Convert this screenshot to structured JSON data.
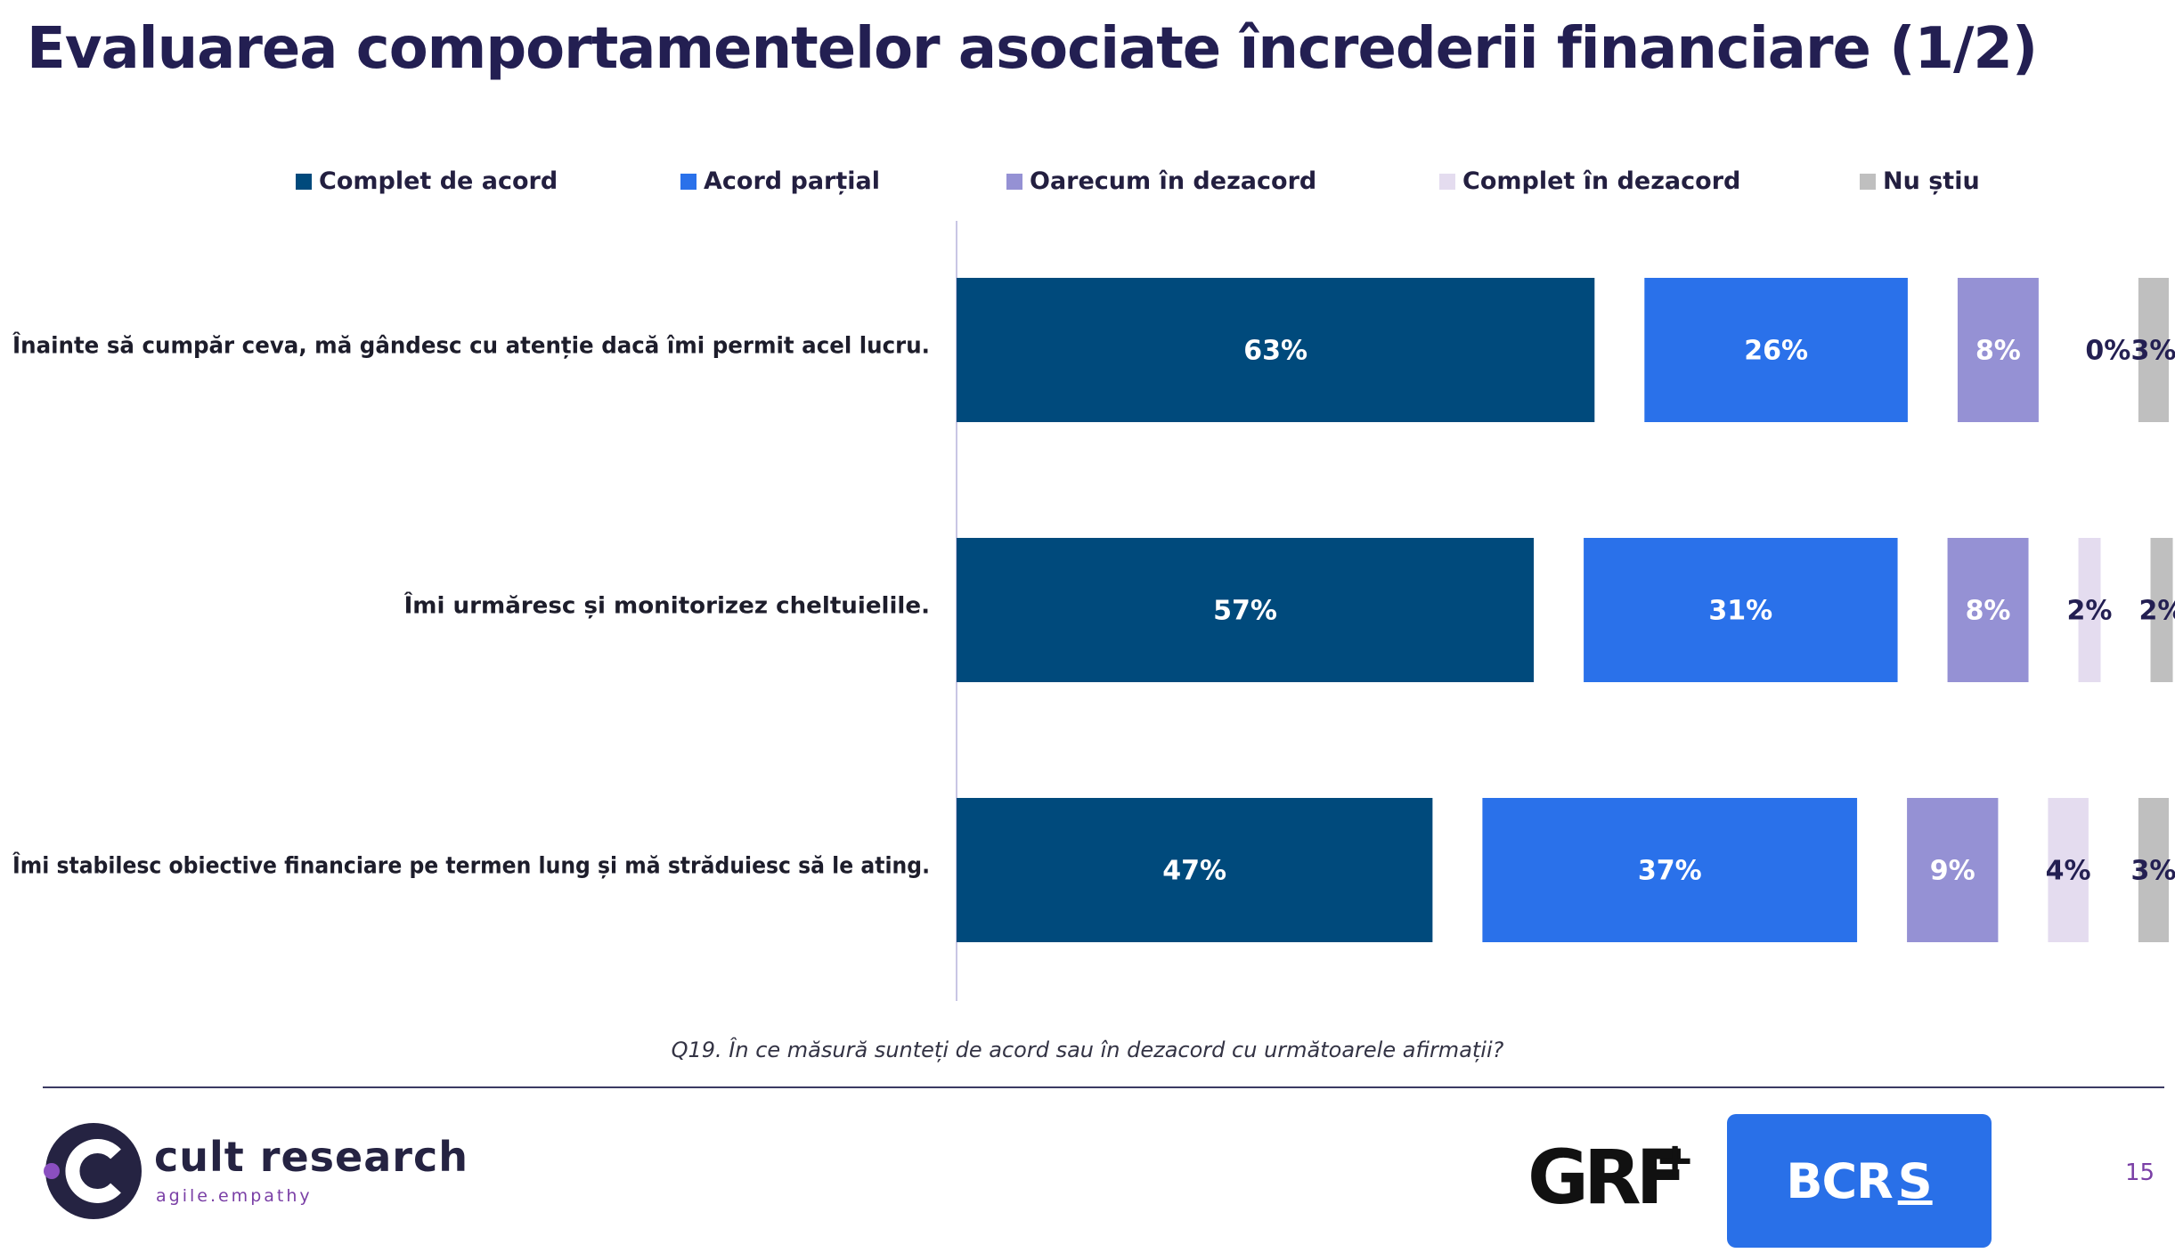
{
  "title": "Evaluarea comportamentelor asociate încrederii financiare (1/2)",
  "question": "Q19. În ce măsură sunteți de acord sau în dezacord cu următoarele afirmații?",
  "logos": {
    "cult_name": "cult research",
    "cult_tagline": "agile.empathy",
    "grf": "GRF",
    "grf_plus": "+",
    "bcr": "BCR",
    "bcr_sign": "S"
  },
  "page_number": "15",
  "chart_data": {
    "type": "bar",
    "orientation": "horizontal",
    "layout": "grouped-segments",
    "legend_position": "top",
    "grid": false,
    "categories": [
      "Înainte să cumpăr ceva, mă gândesc cu atenție dacă îmi permit acel lucru.",
      "Îmi urmăresc și monitorizez cheltuielile.",
      "Îmi stabilesc obiective financiare pe termen lung și mă străduiesc să le ating."
    ],
    "series": [
      {
        "name": "Complet de acord",
        "color": "#004a7c",
        "label_color": "#ffffff",
        "values": [
          63,
          57,
          47
        ],
        "labels": [
          "63%",
          "57%",
          "47%"
        ]
      },
      {
        "name": "Acord parțial",
        "color": "#2a71ea",
        "label_color": "#ffffff",
        "values": [
          26,
          31,
          37
        ],
        "labels": [
          "26%",
          "31%",
          "37%"
        ]
      },
      {
        "name": "Oarecum în dezacord",
        "color": "#9591d4",
        "label_color": "#ffffff",
        "values": [
          8,
          8,
          9
        ],
        "labels": [
          "8%",
          "8%",
          "9%"
        ]
      },
      {
        "name": "Complet în dezacord",
        "color": "#e4dcef",
        "label_color": "#231f52",
        "values": [
          0,
          2,
          4
        ],
        "labels": [
          "0%",
          "2%",
          "4%"
        ]
      },
      {
        "name": "Nu știu",
        "color": "#bfbfbf",
        "label_color": "#231f52",
        "values": [
          3,
          2,
          3
        ],
        "labels": [
          "3%",
          "2%",
          "3%"
        ]
      }
    ],
    "unit": "%"
  }
}
